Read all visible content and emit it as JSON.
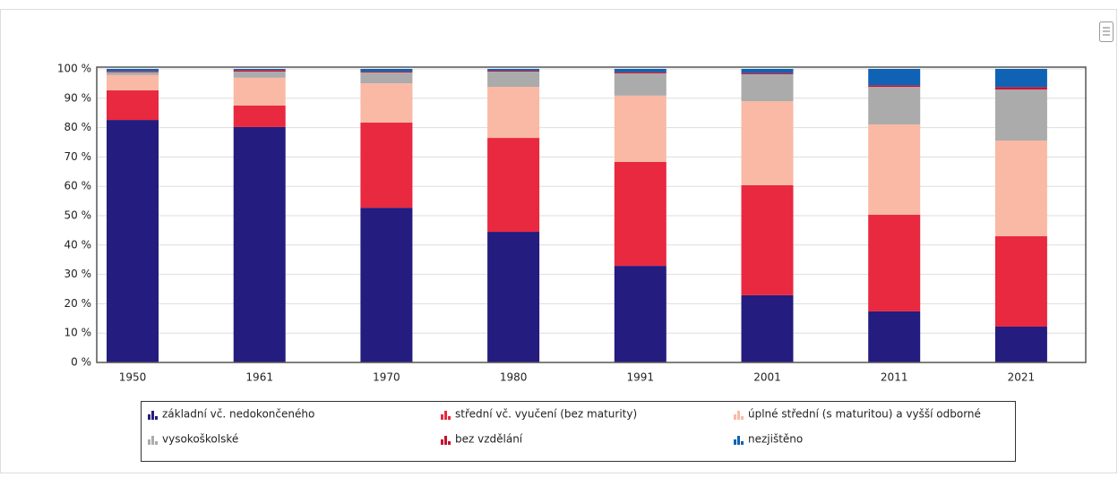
{
  "chart_data": {
    "type": "stacked_bar",
    "categories": [
      "1950",
      "1961",
      "1970",
      "1980",
      "1991",
      "2001",
      "2011",
      "2021"
    ],
    "series": [
      {
        "name": "základní vč. nedokončeného",
        "color": "#241c7e",
        "values": [
          82.6,
          80.2,
          52.7,
          44.5,
          32.9,
          22.9,
          17.4,
          12.2
        ]
      },
      {
        "name": "střední vč. vyučení (bez maturity)",
        "color": "#e8293f",
        "values": [
          10.1,
          7.3,
          29,
          32,
          35.4,
          37.5,
          32.9,
          30.8
        ]
      },
      {
        "name": "úplné střední (s maturitou) a vyšší odborné",
        "color": "#f9b9a5",
        "values": [
          5.2,
          9.5,
          13.4,
          17.4,
          22.6,
          28.6,
          30.8,
          32.6
        ]
      },
      {
        "name": "vysokoškolské",
        "color": "#ababab",
        "values": [
          1.0,
          2.1,
          3.7,
          5.2,
          7.6,
          9.2,
          12.8,
          17.4
        ]
      },
      {
        "name": "bez vzdělání",
        "color": "#c8102e",
        "values": [
          0.3,
          0.5,
          0.3,
          0.3,
          0.4,
          0.4,
          0.5,
          0.8
        ]
      },
      {
        "name": "nezjištěno",
        "color": "#0f62b4",
        "values": [
          0.8,
          0.4,
          0.9,
          0.6,
          1.1,
          1.4,
          5.6,
          6.2
        ]
      }
    ],
    "ylim": [
      0,
      100
    ],
    "yticks": [
      {
        "value": 0,
        "label": "0 %"
      },
      {
        "value": 10,
        "label": "10 %"
      },
      {
        "value": 20,
        "label": "20 %"
      },
      {
        "value": 30,
        "label": "30 %"
      },
      {
        "value": 40,
        "label": "40 %"
      },
      {
        "value": 50,
        "label": "50 %"
      },
      {
        "value": 60,
        "label": "60 %"
      },
      {
        "value": 70,
        "label": "70 %"
      },
      {
        "value": 80,
        "label": "80 %"
      },
      {
        "value": 90,
        "label": "90 %"
      },
      {
        "value": 100,
        "label": "100 %"
      }
    ],
    "grid": true
  }
}
